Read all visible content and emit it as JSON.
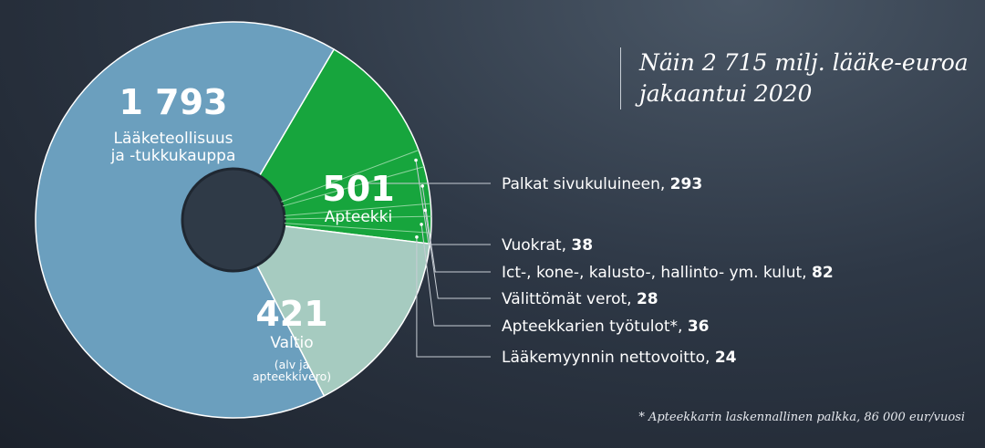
{
  "title": [
    "Näin 2 715 milj. lääke-euroa",
    "jakaantui 2020"
  ],
  "footnote": "* Apteekkarin laskennallinen palkka, 86 000 eur/vuosi",
  "colors": {
    "industry": "#6b9fbe",
    "pharmacy": "#17a53d",
    "state": "#a6cbc0",
    "hole": "#2f3a47"
  },
  "chart_data": {
    "type": "pie",
    "title": "Näin 2 715 milj. lääke-euroa jakaantui 2020",
    "total": 2715,
    "slices": [
      {
        "value_label": "1 793",
        "value": 1793,
        "labels": [
          "Lääketeollisuus",
          "ja -tukkukauppa"
        ]
      },
      {
        "value_label": "501",
        "value": 501,
        "labels": [
          "Apteekki"
        ]
      },
      {
        "value_label": "421",
        "value": 421,
        "labels": [
          "Valtio"
        ],
        "sublabels": [
          "(alv ja",
          "apteekkivero)"
        ]
      }
    ],
    "breakdown": {
      "parent": "Apteekki",
      "items": [
        {
          "label": "Palkat sivukuluineen,",
          "value": 293,
          "value_label": "293"
        },
        {
          "label": "Vuokrat,",
          "value": 38,
          "value_label": "38"
        },
        {
          "label": "Ict-, kone-, kalusto-, hallinto- ym. kulut,",
          "value": 82,
          "value_label": "82"
        },
        {
          "label": "Välittömät verot,",
          "value": 28,
          "value_label": "28"
        },
        {
          "label": "Apteekkarien työtulot*,",
          "value": 36,
          "value_label": "36"
        },
        {
          "label": "Lääkemyynnin nettovoitto,",
          "value": 24,
          "value_label": "24"
        }
      ]
    }
  }
}
